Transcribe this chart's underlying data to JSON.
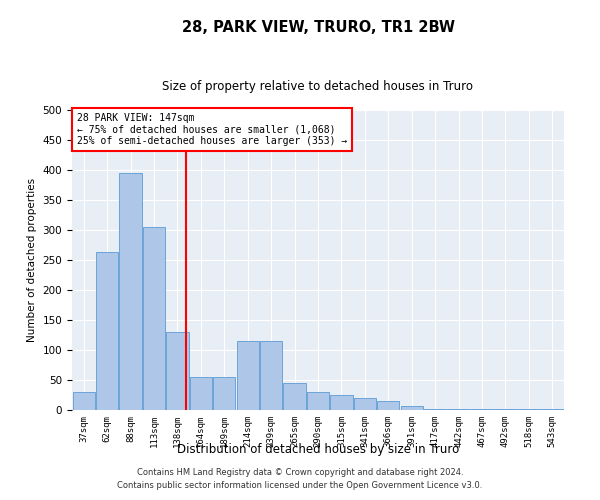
{
  "title": "28, PARK VIEW, TRURO, TR1 2BW",
  "subtitle": "Size of property relative to detached houses in Truro",
  "xlabel": "Distribution of detached houses by size in Truro",
  "ylabel": "Number of detached properties",
  "categories": [
    "37sqm",
    "62sqm",
    "88sqm",
    "113sqm",
    "138sqm",
    "164sqm",
    "189sqm",
    "214sqm",
    "239sqm",
    "265sqm",
    "290sqm",
    "315sqm",
    "341sqm",
    "366sqm",
    "391sqm",
    "417sqm",
    "442sqm",
    "467sqm",
    "492sqm",
    "518sqm",
    "543sqm"
  ],
  "values": [
    30,
    263,
    395,
    305,
    130,
    55,
    55,
    115,
    115,
    45,
    30,
    25,
    20,
    15,
    7,
    2,
    1,
    1,
    1,
    1,
    1
  ],
  "bar_color": "#aec6e8",
  "bar_edge_color": "#5b9bd5",
  "marker_label": "28 PARK VIEW: 147sqm",
  "annotation_line1": "← 75% of detached houses are smaller (1,068)",
  "annotation_line2": "25% of semi-detached houses are larger (353) →",
  "background_color": "#e8eef5",
  "footer_line1": "Contains HM Land Registry data © Crown copyright and database right 2024.",
  "footer_line2": "Contains public sector information licensed under the Open Government Licence v3.0.",
  "ylim": [
    0,
    500
  ],
  "yticks": [
    0,
    50,
    100,
    150,
    200,
    250,
    300,
    350,
    400,
    450,
    500
  ]
}
